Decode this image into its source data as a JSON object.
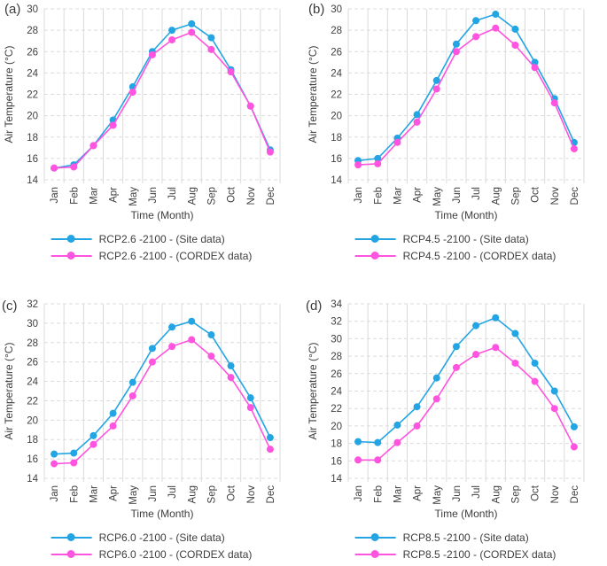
{
  "figure": {
    "y_axis_label": "Air Temperature (°C)",
    "x_axis_label": "Time (Month)",
    "colors": {
      "site": "#23A5E4",
      "cordex": "#FF54DF",
      "grid": "#DBDBDB",
      "text": "#404040"
    }
  },
  "chart_data": [
    {
      "panel": "(a)",
      "type": "line",
      "categories": [
        "Jan",
        "Feb",
        "Mar",
        "Apr",
        "May",
        "Jun",
        "Jul",
        "Aug",
        "Sep",
        "Oct",
        "Nov",
        "Dec"
      ],
      "xlabel": "Time (Month)",
      "ylabel": "Air Temperature (°C)",
      "ylim": [
        14,
        30
      ],
      "ytick_step": 2,
      "grid": "horizontal-dashed, vertical-solid",
      "legend_position": "bottom",
      "series": [
        {
          "name": "RCP2.6 -2100 - (Site data)",
          "color_key": "site",
          "values": [
            15.1,
            15.4,
            17.2,
            19.6,
            22.7,
            26.0,
            28.0,
            28.6,
            27.3,
            24.3,
            20.9,
            16.8
          ]
        },
        {
          "name": "RCP2.6 -2100 - (CORDEX data)",
          "color_key": "cordex",
          "values": [
            15.1,
            15.2,
            17.2,
            19.1,
            22.2,
            25.7,
            27.1,
            27.8,
            26.2,
            24.1,
            20.9,
            16.6
          ]
        }
      ]
    },
    {
      "panel": "(b)",
      "type": "line",
      "categories": [
        "Jan",
        "Feb",
        "Mar",
        "Apr",
        "May",
        "Jun",
        "Jul",
        "Aug",
        "Sep",
        "Oct",
        "Nov",
        "Dec"
      ],
      "xlabel": "Time (Month)",
      "ylabel": "Air Temperature (°C)",
      "ylim": [
        14,
        30
      ],
      "ytick_step": 2,
      "grid": "horizontal-dashed, vertical-solid",
      "legend_position": "bottom",
      "series": [
        {
          "name": "RCP4.5 -2100 - (Site data)",
          "color_key": "site",
          "values": [
            15.8,
            16.0,
            17.9,
            20.1,
            23.3,
            26.7,
            28.9,
            29.5,
            28.1,
            25.0,
            21.6,
            17.5
          ]
        },
        {
          "name": "RCP4.5 -2100 - (CORDEX data)",
          "color_key": "cordex",
          "values": [
            15.4,
            15.5,
            17.5,
            19.4,
            22.5,
            26.0,
            27.4,
            28.2,
            26.6,
            24.5,
            21.2,
            16.9
          ]
        }
      ]
    },
    {
      "panel": "(c)",
      "type": "line",
      "categories": [
        "Jan",
        "Feb",
        "Mar",
        "Apr",
        "May",
        "Jun",
        "Jul",
        "Aug",
        "Sep",
        "Oct",
        "Nov",
        "Dec"
      ],
      "xlabel": "Time (Month)",
      "ylabel": "Air Temperature (°C)",
      "ylim": [
        14,
        32
      ],
      "ytick_step": 2,
      "grid": "horizontal-dashed, vertical-solid",
      "legend_position": "bottom",
      "series": [
        {
          "name": "RCP6.0 -2100 - (Site data)",
          "color_key": "site",
          "values": [
            16.5,
            16.6,
            18.4,
            20.7,
            23.9,
            27.4,
            29.6,
            30.2,
            28.8,
            25.6,
            22.3,
            18.2
          ]
        },
        {
          "name": "RCP6.0 -2100 - (CORDEX data)",
          "color_key": "cordex",
          "values": [
            15.5,
            15.6,
            17.5,
            19.4,
            22.5,
            26.0,
            27.6,
            28.3,
            26.6,
            24.4,
            21.3,
            17.0
          ]
        }
      ]
    },
    {
      "panel": "(d)",
      "type": "line",
      "categories": [
        "Jan",
        "Feb",
        "Mar",
        "Apr",
        "May",
        "Jun",
        "Jul",
        "Aug",
        "Sep",
        "Oct",
        "Nov",
        "Dec"
      ],
      "xlabel": "Time (Month)",
      "ylabel": "Air Temperature (°C)",
      "ylim": [
        14,
        34
      ],
      "ytick_step": 2,
      "grid": "horizontal-dashed, vertical-solid",
      "legend_position": "bottom",
      "series": [
        {
          "name": "RCP8.5 -2100 - (Site data)",
          "color_key": "site",
          "values": [
            18.2,
            18.1,
            20.1,
            22.2,
            25.5,
            29.1,
            31.5,
            32.4,
            30.6,
            27.2,
            24.0,
            19.9
          ]
        },
        {
          "name": "RCP8.5 -2100 - (CORDEX data)",
          "color_key": "cordex",
          "values": [
            16.1,
            16.1,
            18.1,
            20.0,
            23.1,
            26.7,
            28.2,
            29.0,
            27.2,
            25.1,
            22.0,
            17.6
          ]
        }
      ]
    }
  ]
}
